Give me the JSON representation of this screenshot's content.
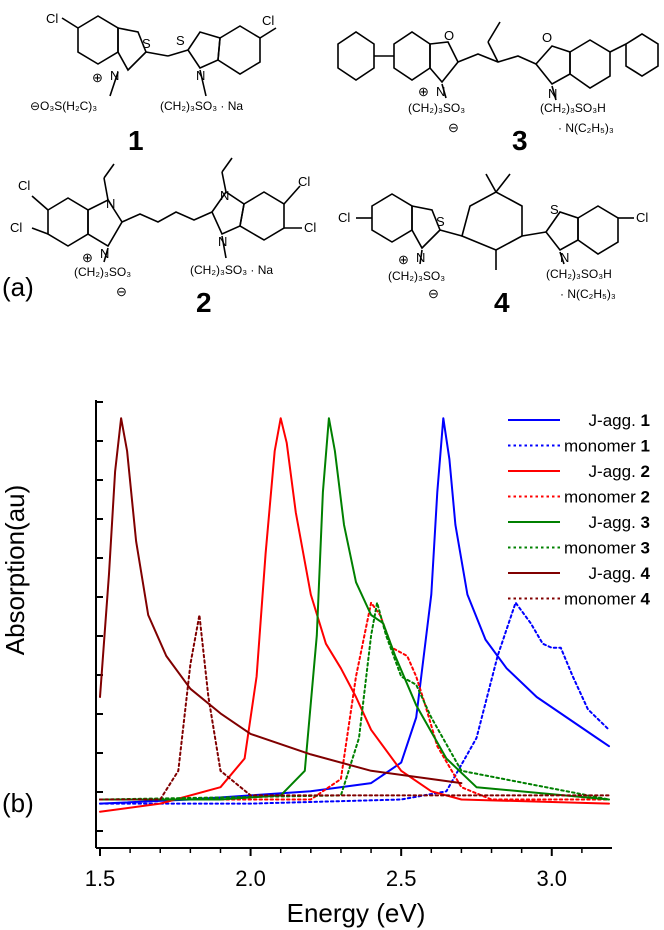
{
  "panel_labels": {
    "a": "(a)",
    "b": "(b)"
  },
  "structures": {
    "c1": {
      "number": "1",
      "subs_left": "Cl",
      "subs_right": "Cl",
      "atom_s1": "S",
      "atom_s2": "S",
      "atom_n1": "N",
      "atom_n2": "N",
      "plus": "⊕",
      "counterion_left": "⊖O₃S(H₂C)₃",
      "chain_right": "(CH₂)₃SO₃ · Na"
    },
    "c2": {
      "number": "2",
      "cl1": "Cl",
      "cl2": "Cl",
      "cl3": "Cl",
      "cl4": "Cl",
      "atom_n1": "N",
      "atom_n2": "N",
      "atom_n3": "N",
      "atom_n4": "N",
      "plus": "⊕",
      "chain_left": "(CH₂)₃SO₃",
      "minus": "⊖",
      "chain_right": "(CH₂)₃SO₃ · Na"
    },
    "c3": {
      "number": "3",
      "atom_o1": "O",
      "atom_o2": "O",
      "atom_n1": "N",
      "atom_n2": "N",
      "plus": "⊕",
      "chain_left": "(CH₂)₃SO₃",
      "minus": "⊖",
      "chain_right": "(CH₂)₃SO₃H",
      "counterion": "· N(C₂H₅)₃"
    },
    "c4": {
      "number": "4",
      "subs_left": "Cl",
      "subs_right": "Cl",
      "atom_s1": "S",
      "atom_s2": "S",
      "atom_n1": "N",
      "atom_n2": "N",
      "plus": "⊕",
      "chain_left": "(CH₂)₃SO₃",
      "minus": "⊖",
      "chain_right": "(CH₂)₃SO₃H",
      "counterion": "· N(C₂H₅)₃"
    }
  },
  "chart_data": {
    "type": "line",
    "xlabel": "Energy (eV)",
    "ylabel": "Absorption(au)",
    "xlim": [
      1.5,
      3.2
    ],
    "ylim": [
      0,
      1.0
    ],
    "x_ticks": [
      "1.5",
      "2.0",
      "2.5",
      "3.0"
    ],
    "x_tick_values": [
      1.5,
      2.0,
      2.5,
      3.0
    ],
    "y_tick_labels_shown": false,
    "grid": false,
    "legend_position": "top-right",
    "series": [
      {
        "name": "J-agg. 1",
        "color": "#0000ff",
        "dash": "solid",
        "x": [
          1.5,
          1.8,
          2.0,
          2.2,
          2.4,
          2.5,
          2.55,
          2.6,
          2.62,
          2.64,
          2.66,
          2.68,
          2.72,
          2.78,
          2.85,
          2.95,
          3.05,
          3.15,
          3.19
        ],
        "y": [
          0.04,
          0.05,
          0.06,
          0.07,
          0.09,
          0.14,
          0.25,
          0.55,
          0.8,
          0.98,
          0.88,
          0.72,
          0.55,
          0.44,
          0.37,
          0.3,
          0.25,
          0.2,
          0.18
        ]
      },
      {
        "name": "monomer 1",
        "color": "#0000ff",
        "dash": "dot",
        "x": [
          1.5,
          2.0,
          2.5,
          2.65,
          2.75,
          2.82,
          2.88,
          2.93,
          2.97,
          3.0,
          3.03,
          3.07,
          3.12,
          3.19
        ],
        "y": [
          0.04,
          0.04,
          0.05,
          0.07,
          0.2,
          0.4,
          0.53,
          0.48,
          0.43,
          0.42,
          0.42,
          0.35,
          0.27,
          0.22
        ]
      },
      {
        "name": "J-agg. 2",
        "color": "#ff0000",
        "dash": "solid",
        "x": [
          1.5,
          1.7,
          1.9,
          1.98,
          2.02,
          2.05,
          2.08,
          2.1,
          2.12,
          2.15,
          2.2,
          2.25,
          2.3,
          2.35,
          2.4,
          2.5,
          2.6,
          2.7,
          3.19
        ],
        "y": [
          0.02,
          0.04,
          0.08,
          0.15,
          0.35,
          0.65,
          0.9,
          0.98,
          0.92,
          0.75,
          0.55,
          0.43,
          0.37,
          0.3,
          0.22,
          0.12,
          0.07,
          0.05,
          0.04
        ]
      },
      {
        "name": "monomer 2",
        "color": "#ff0000",
        "dash": "dot",
        "x": [
          1.5,
          2.2,
          2.3,
          2.35,
          2.4,
          2.43,
          2.47,
          2.52,
          2.55,
          2.58,
          2.62,
          2.7,
          2.8,
          3.19
        ],
        "y": [
          0.05,
          0.05,
          0.1,
          0.35,
          0.53,
          0.5,
          0.42,
          0.4,
          0.35,
          0.28,
          0.18,
          0.08,
          0.05,
          0.05
        ]
      },
      {
        "name": "J-agg. 3",
        "color": "#008000",
        "dash": "solid",
        "x": [
          1.5,
          1.9,
          2.1,
          2.18,
          2.22,
          2.24,
          2.26,
          2.28,
          2.31,
          2.35,
          2.4,
          2.44,
          2.48,
          2.55,
          2.65,
          2.75,
          3.19
        ],
        "y": [
          0.05,
          0.05,
          0.06,
          0.12,
          0.45,
          0.8,
          0.98,
          0.9,
          0.72,
          0.58,
          0.5,
          0.48,
          0.4,
          0.28,
          0.15,
          0.08,
          0.05
        ]
      },
      {
        "name": "monomer 3",
        "color": "#008000",
        "dash": "dot",
        "x": [
          1.5,
          2.3,
          2.36,
          2.4,
          2.42,
          2.45,
          2.5,
          2.55,
          2.6,
          2.7,
          3.19
        ],
        "y": [
          0.05,
          0.06,
          0.2,
          0.45,
          0.53,
          0.45,
          0.35,
          0.33,
          0.25,
          0.12,
          0.05
        ]
      },
      {
        "name": "J-agg. 4",
        "color": "#800000",
        "dash": "solid",
        "x": [
          1.5,
          1.53,
          1.55,
          1.57,
          1.59,
          1.62,
          1.66,
          1.72,
          1.8,
          1.9,
          2.0,
          2.2,
          2.4,
          2.6,
          2.7
        ],
        "y": [
          0.3,
          0.6,
          0.85,
          0.98,
          0.9,
          0.68,
          0.5,
          0.4,
          0.32,
          0.26,
          0.21,
          0.16,
          0.12,
          0.1,
          0.09
        ]
      },
      {
        "name": "monomer 4",
        "color": "#800000",
        "dash": "dot",
        "x": [
          1.5,
          1.7,
          1.76,
          1.8,
          1.83,
          1.86,
          1.9,
          2.0,
          2.5,
          3.19
        ],
        "y": [
          0.05,
          0.05,
          0.12,
          0.38,
          0.5,
          0.3,
          0.12,
          0.06,
          0.06,
          0.06
        ]
      }
    ]
  }
}
